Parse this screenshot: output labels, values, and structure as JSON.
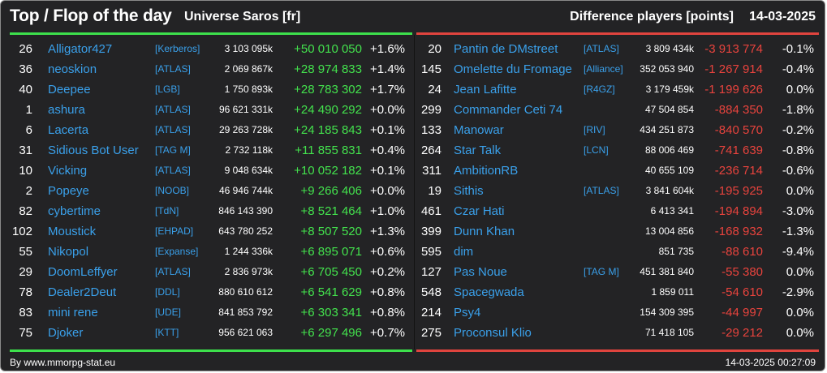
{
  "header": {
    "title": "Top / Flop of the day",
    "universe": "Universe Saros [fr]",
    "difference_label": "Difference players [points]",
    "date": "14-03-2025"
  },
  "footer": {
    "credit": "By www.mmorpg-stat.eu",
    "timestamp": "14-03-2025 00:27:09"
  },
  "colors": {
    "background": "#232325",
    "link": "#3aa0ea",
    "positive": "#43e24d",
    "negative": "#e8433d",
    "top_bar": "#3de04c",
    "flop_bar": "#e0443e"
  },
  "top": [
    {
      "rank": "26",
      "name": "Alligator427",
      "alliance": "[Kerberos]",
      "points": "3 103 095k",
      "delta": "+50 010 050",
      "pct": "+1.6%"
    },
    {
      "rank": "36",
      "name": "neoskion",
      "alliance": "[ATLAS]",
      "points": "2 069 867k",
      "delta": "+28 974 833",
      "pct": "+1.4%"
    },
    {
      "rank": "40",
      "name": "Deepee",
      "alliance": "[LGB]",
      "points": "1 750 893k",
      "delta": "+28 783 302",
      "pct": "+1.7%"
    },
    {
      "rank": "1",
      "name": "ashura",
      "alliance": "[ATLAS]",
      "points": "96 621 331k",
      "delta": "+24 490 292",
      "pct": "+0.0%"
    },
    {
      "rank": "6",
      "name": "Lacerta",
      "alliance": "[ATLAS]",
      "points": "29 263 728k",
      "delta": "+24 185 843",
      "pct": "+0.1%"
    },
    {
      "rank": "31",
      "name": "Sidious Bot User",
      "alliance": "[TAG M]",
      "points": "2 732 118k",
      "delta": "+11 855 831",
      "pct": "+0.4%"
    },
    {
      "rank": "10",
      "name": "Vicking",
      "alliance": "[ATLAS]",
      "points": "9 048 634k",
      "delta": "+10 052 182",
      "pct": "+0.1%"
    },
    {
      "rank": "2",
      "name": "Popeye",
      "alliance": "[NOOB]",
      "points": "46 946 744k",
      "delta": "+9 266 406",
      "pct": "+0.0%"
    },
    {
      "rank": "82",
      "name": "cybertime",
      "alliance": "[TdN]",
      "points": "846 143 390",
      "delta": "+8 521 464",
      "pct": "+1.0%"
    },
    {
      "rank": "102",
      "name": "Moustick",
      "alliance": "[EHPAD]",
      "points": "643 780 252",
      "delta": "+8 507 520",
      "pct": "+1.3%"
    },
    {
      "rank": "55",
      "name": "Nikopol",
      "alliance": "[Expanse]",
      "points": "1 244 336k",
      "delta": "+6 895 071",
      "pct": "+0.6%"
    },
    {
      "rank": "29",
      "name": "DoomLeffyer",
      "alliance": "[ATLAS]",
      "points": "2 836 973k",
      "delta": "+6 705 450",
      "pct": "+0.2%"
    },
    {
      "rank": "78",
      "name": "Dealer2Deut",
      "alliance": "[DDL]",
      "points": "880 610 612",
      "delta": "+6 541 629",
      "pct": "+0.8%"
    },
    {
      "rank": "83",
      "name": "mini rene",
      "alliance": "[UDE]",
      "points": "841 853 792",
      "delta": "+6 303 341",
      "pct": "+0.8%"
    },
    {
      "rank": "75",
      "name": "Djoker",
      "alliance": "[KTT]",
      "points": "956 621 063",
      "delta": "+6 297 496",
      "pct": "+0.7%"
    }
  ],
  "flop": [
    {
      "rank": "20",
      "name": "Pantin de DMstreet",
      "alliance": "[ATLAS]",
      "points": "3 809 434k",
      "delta": "-3 913 774",
      "pct": "-0.1%"
    },
    {
      "rank": "145",
      "name": "Omelette du Fromage",
      "alliance": "[Alliance]",
      "points": "352 053 940",
      "delta": "-1 267 914",
      "pct": "-0.4%"
    },
    {
      "rank": "24",
      "name": "Jean Lafitte",
      "alliance": "[R4GZ]",
      "points": "3 179 459k",
      "delta": "-1 199 626",
      "pct": "0.0%"
    },
    {
      "rank": "299",
      "name": "Commander Ceti 74",
      "alliance": "",
      "points": "47 504 854",
      "delta": "-884 350",
      "pct": "-1.8%"
    },
    {
      "rank": "133",
      "name": "Manowar",
      "alliance": "[RIV]",
      "points": "434 251 873",
      "delta": "-840 570",
      "pct": "-0.2%"
    },
    {
      "rank": "264",
      "name": "Star Talk",
      "alliance": "[LCN]",
      "points": "88 006 469",
      "delta": "-741 639",
      "pct": "-0.8%"
    },
    {
      "rank": "311",
      "name": "AmbitionRB",
      "alliance": "",
      "points": "40 655 109",
      "delta": "-236 714",
      "pct": "-0.6%"
    },
    {
      "rank": "19",
      "name": "Sithis",
      "alliance": "[ATLAS]",
      "points": "3 841 604k",
      "delta": "-195 925",
      "pct": "0.0%"
    },
    {
      "rank": "461",
      "name": "Czar Hati",
      "alliance": "",
      "points": "6 413 341",
      "delta": "-194 894",
      "pct": "-3.0%"
    },
    {
      "rank": "399",
      "name": "Dunn Khan",
      "alliance": "",
      "points": "13 004 856",
      "delta": "-168 932",
      "pct": "-1.3%"
    },
    {
      "rank": "595",
      "name": "dim",
      "alliance": "",
      "points": "851 735",
      "delta": "-88 610",
      "pct": "-9.4%"
    },
    {
      "rank": "127",
      "name": "Pas Noue",
      "alliance": "[TAG M]",
      "points": "451 381 840",
      "delta": "-55 380",
      "pct": "0.0%"
    },
    {
      "rank": "548",
      "name": "Spacegwada",
      "alliance": "",
      "points": "1 859 011",
      "delta": "-54 610",
      "pct": "-2.9%"
    },
    {
      "rank": "214",
      "name": "Psy4",
      "alliance": "",
      "points": "154 309 395",
      "delta": "-44 997",
      "pct": "0.0%"
    },
    {
      "rank": "275",
      "name": "Proconsul Klio",
      "alliance": "",
      "points": "71 418 105",
      "delta": "-29 212",
      "pct": "0.0%"
    }
  ]
}
